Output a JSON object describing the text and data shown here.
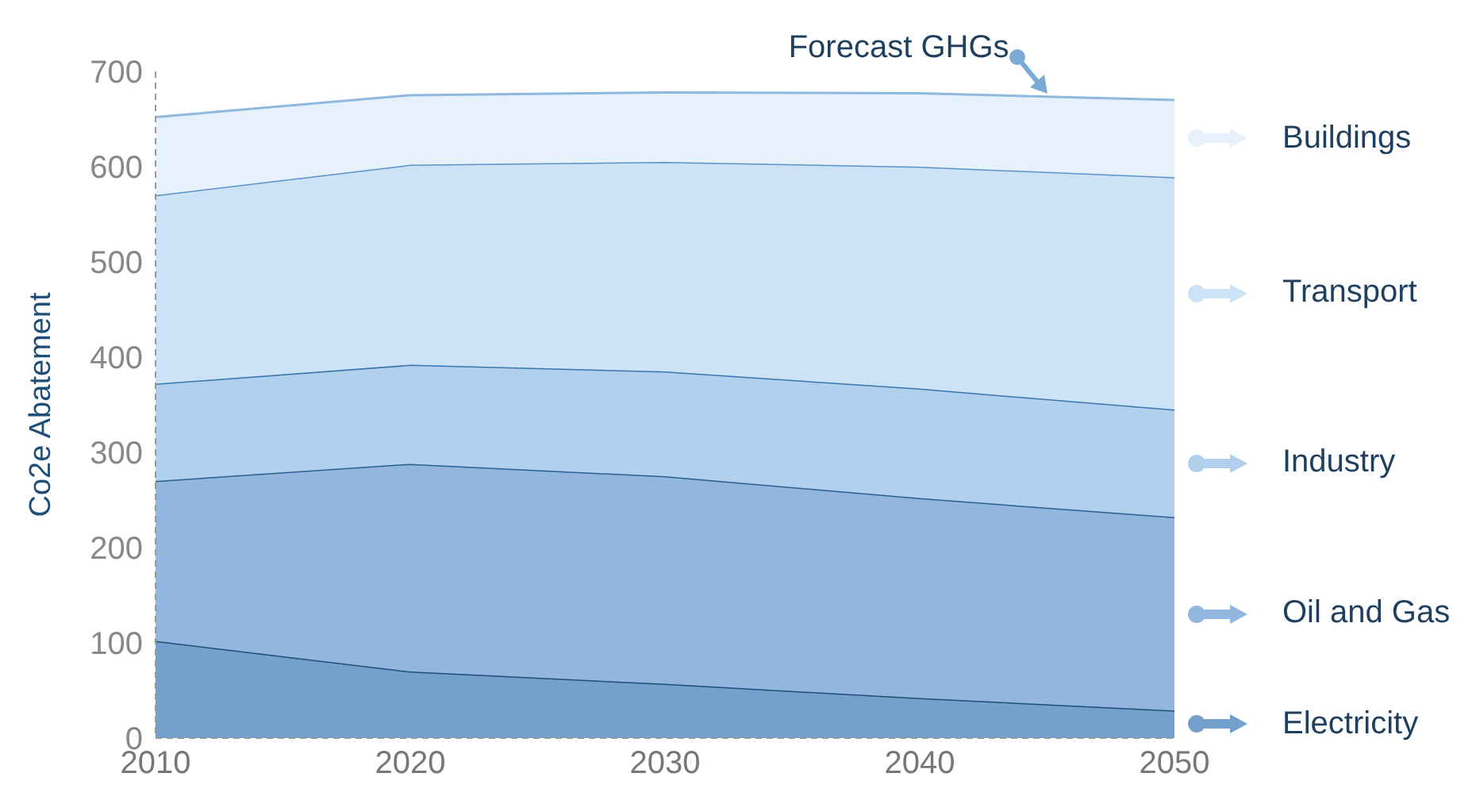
{
  "chart_data": {
    "type": "area",
    "stacked": true,
    "ylabel": "Co2e Abatement",
    "x": [
      2010,
      2020,
      2030,
      2040,
      2050
    ],
    "xlim": [
      2010,
      2050
    ],
    "xticks": [
      2010,
      2020,
      2030,
      2040,
      2050
    ],
    "ylim": [
      0,
      700
    ],
    "yticks": [
      0,
      100,
      200,
      300,
      400,
      500,
      600,
      700
    ],
    "grid": false,
    "legend": "right",
    "annotations": [
      {
        "text": "Forecast GHGs",
        "x": 2045,
        "y": 674
      }
    ],
    "series": [
      {
        "name": "Electricity",
        "color": "#74a0cc",
        "values": [
          102,
          70,
          57,
          42,
          29
        ]
      },
      {
        "name": "Oil and Gas",
        "color": "#92b6de",
        "values": [
          168,
          218,
          218,
          210,
          203
        ]
      },
      {
        "name": "Industry",
        "color": "#b0d0ee",
        "values": [
          102,
          104,
          110,
          115,
          113
        ]
      },
      {
        "name": "Transport",
        "color": "#cce2f7",
        "values": [
          198,
          210,
          220,
          233,
          244
        ]
      },
      {
        "name": "Buildings",
        "color": "#e6f1fb",
        "values": [
          82,
          73,
          73,
          77,
          81
        ]
      }
    ]
  }
}
